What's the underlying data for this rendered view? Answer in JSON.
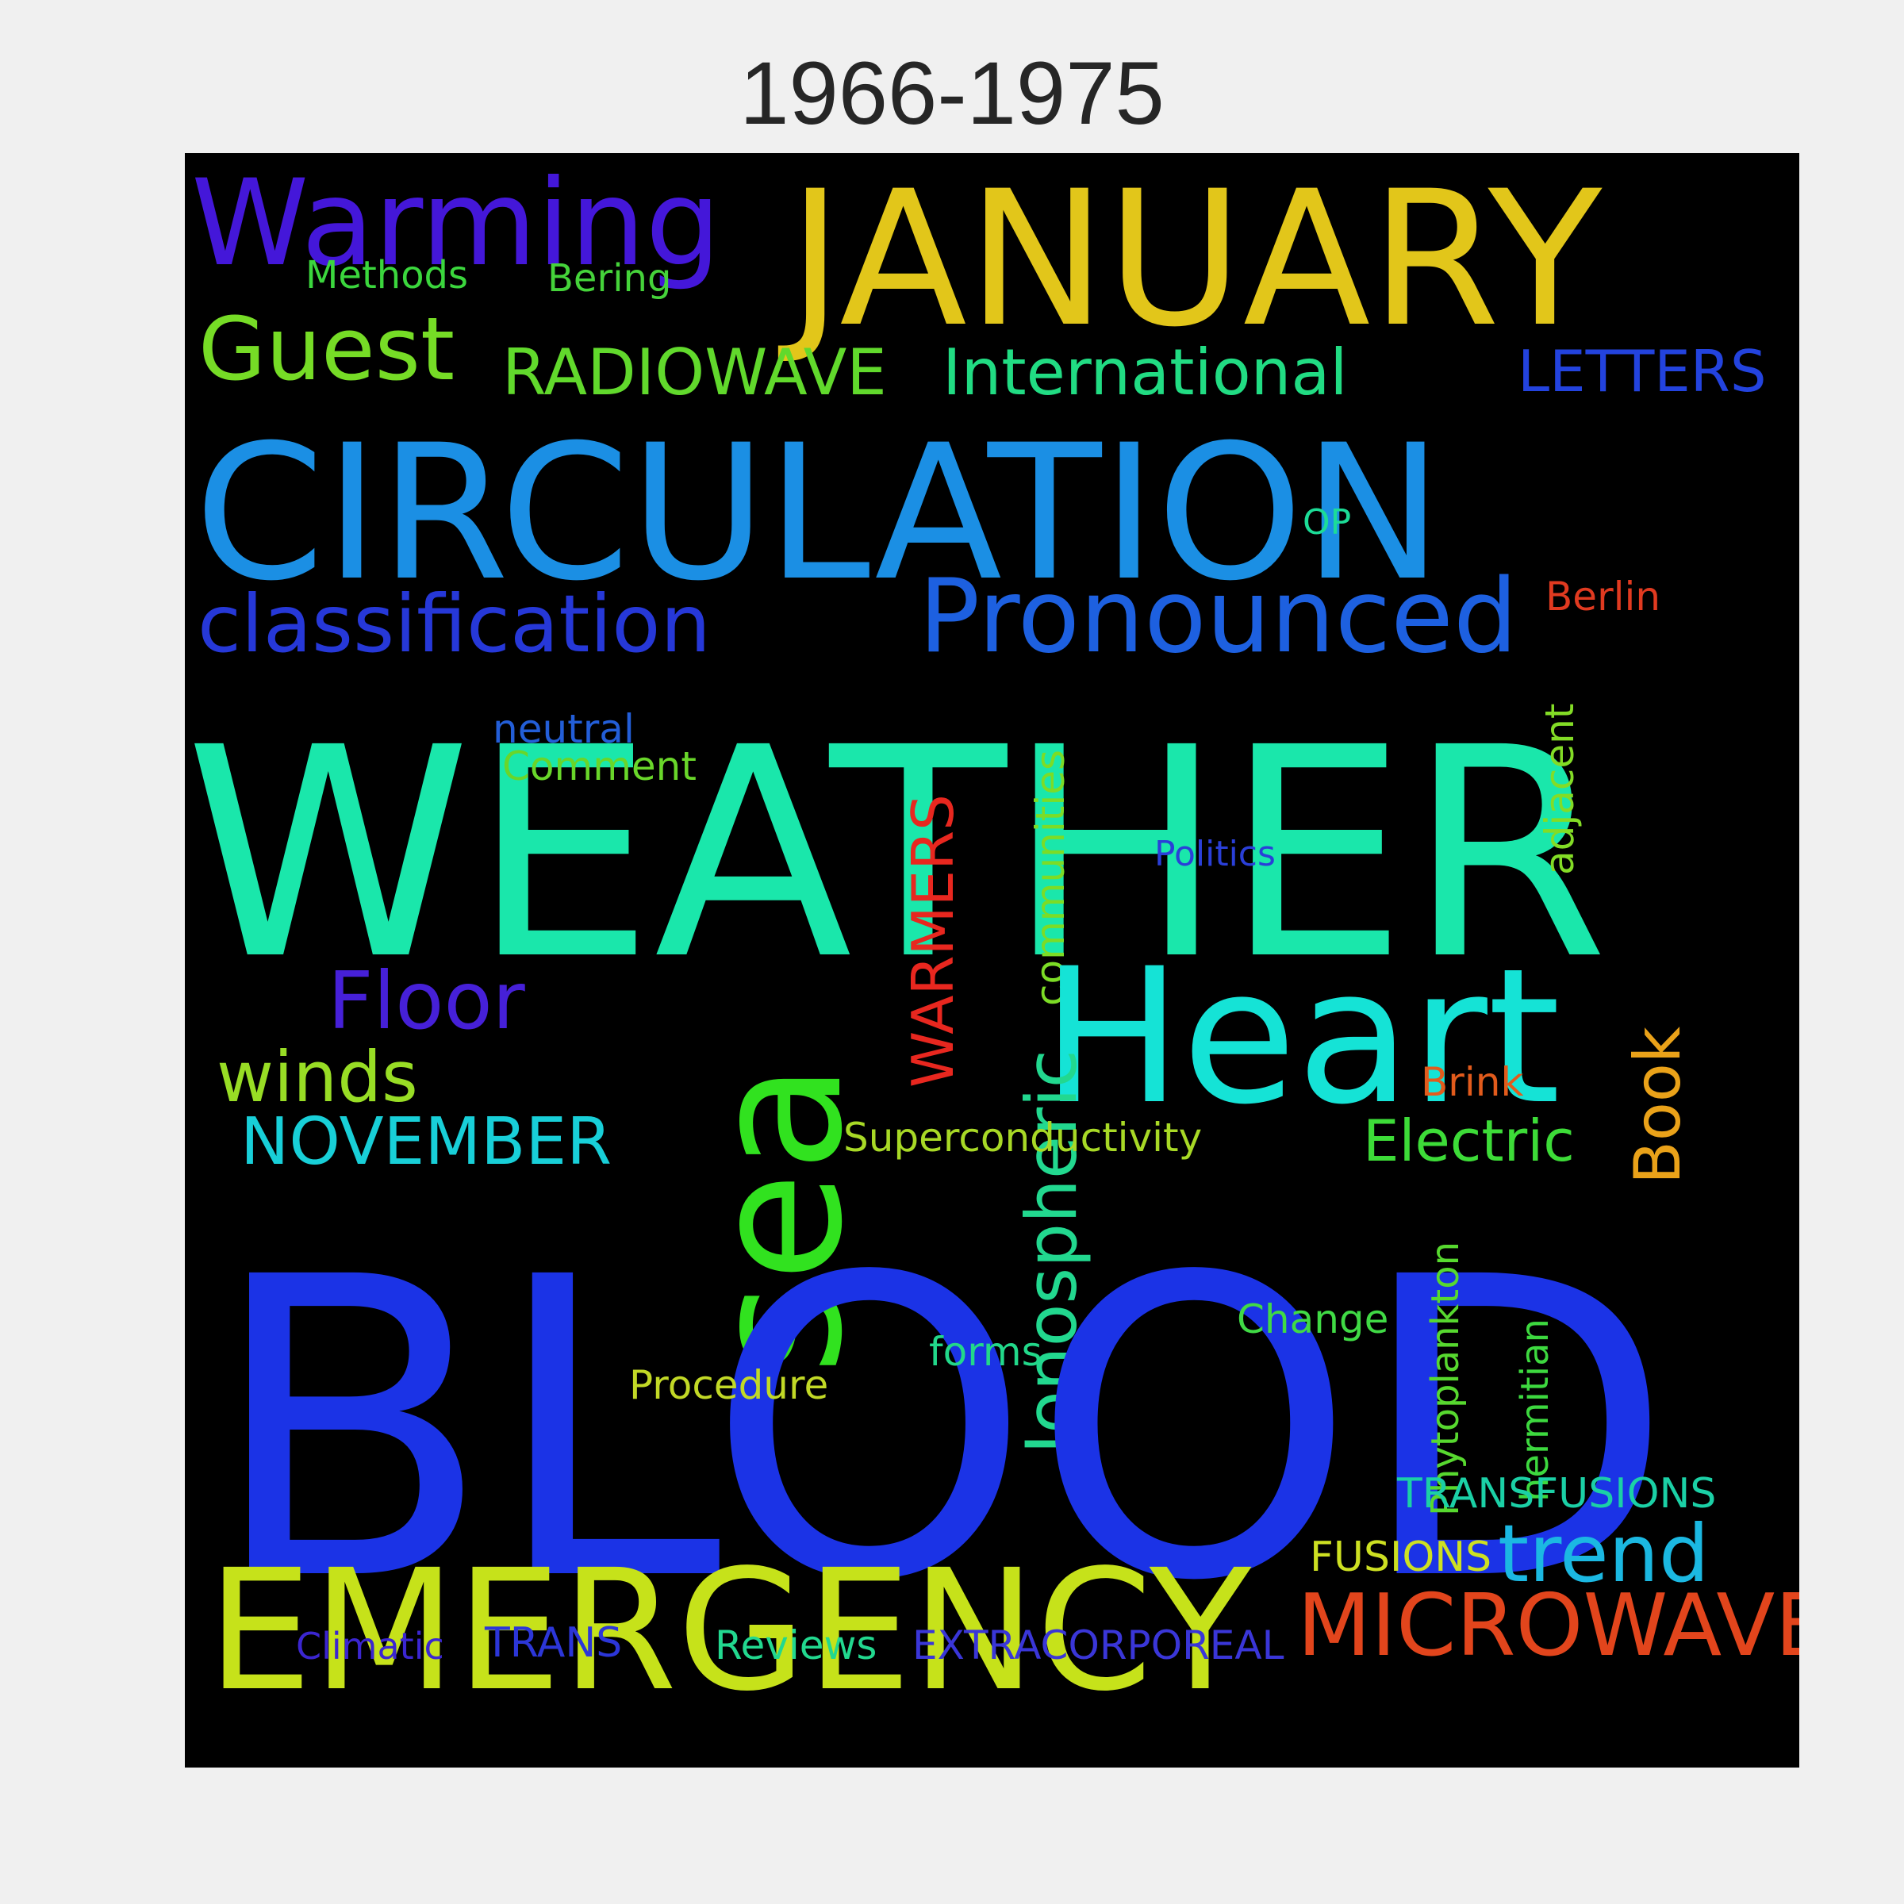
{
  "title": "1966-1975",
  "words": [
    {
      "text": "Warming",
      "color": "#4417d9"
    },
    {
      "text": "JANUARY",
      "color": "#e2c61a"
    },
    {
      "text": "Methods",
      "color": "#3bd63d"
    },
    {
      "text": "Bering",
      "color": "#45d33a"
    },
    {
      "text": "Guest",
      "color": "#76dc26"
    },
    {
      "text": "RADIOWAVE",
      "color": "#61d92c"
    },
    {
      "text": "International",
      "color": "#21dc83"
    },
    {
      "text": "LETTERS",
      "color": "#2343de"
    },
    {
      "text": "CIRCULATION",
      "color": "#1b8fe4"
    },
    {
      "text": "OP",
      "color": "#1cdc97"
    },
    {
      "text": "classification",
      "color": "#2638d8"
    },
    {
      "text": "Pronounced",
      "color": "#1d60e0"
    },
    {
      "text": "Berlin",
      "color": "#e03a20"
    },
    {
      "text": "WEATHER",
      "color": "#1ae7ab"
    },
    {
      "text": "neutral",
      "color": "#235ed8"
    },
    {
      "text": "Comment",
      "color": "#69d62a"
    },
    {
      "text": "adjacent",
      "color": "#83dc26"
    },
    {
      "text": "communities",
      "color": "#7cdc26"
    },
    {
      "text": "WARMERS",
      "color": "#e8271f"
    },
    {
      "text": "Politics",
      "color": "#2a3fd8"
    },
    {
      "text": "Heart",
      "color": "#15e3d6"
    },
    {
      "text": "Floor",
      "color": "#4620d8"
    },
    {
      "text": "sea",
      "color": "#31e21f"
    },
    {
      "text": "Ionospheric",
      "color": "#22d88f"
    },
    {
      "text": "winds",
      "color": "#98dd25"
    },
    {
      "text": "Book",
      "color": "#eaa219"
    },
    {
      "text": "Brink",
      "color": "#e25b1c"
    },
    {
      "text": "NOVEMBER",
      "color": "#18cfd8"
    },
    {
      "text": "Superconductivity",
      "color": "#a8d926"
    },
    {
      "text": "Electric",
      "color": "#3ddc38"
    },
    {
      "text": "BLOOD",
      "color": "#1b33e6"
    },
    {
      "text": "Phytoplankton",
      "color": "#57d82f"
    },
    {
      "text": "hermitian",
      "color": "#3dd83f"
    },
    {
      "text": "Change",
      "color": "#40da45"
    },
    {
      "text": "forms",
      "color": "#22d88a"
    },
    {
      "text": "Procedure",
      "color": "#c2d926"
    },
    {
      "text": "EMERGENCY",
      "color": "#c6e21a"
    },
    {
      "text": "TRANSFUSIONS",
      "color": "#1bd0a6"
    },
    {
      "text": "FUSIONS",
      "color": "#cde022"
    },
    {
      "text": "trend",
      "color": "#1bb8e2"
    },
    {
      "text": "MICROWAVE",
      "color": "#e2451c"
    },
    {
      "text": "Climatic",
      "color": "#3b26d0"
    },
    {
      "text": "TRANS",
      "color": "#2c36d8"
    },
    {
      "text": "Reviews",
      "color": "#22d88f"
    },
    {
      "text": "EXTRACORPOREAL",
      "color": "#3a36d8"
    }
  ]
}
